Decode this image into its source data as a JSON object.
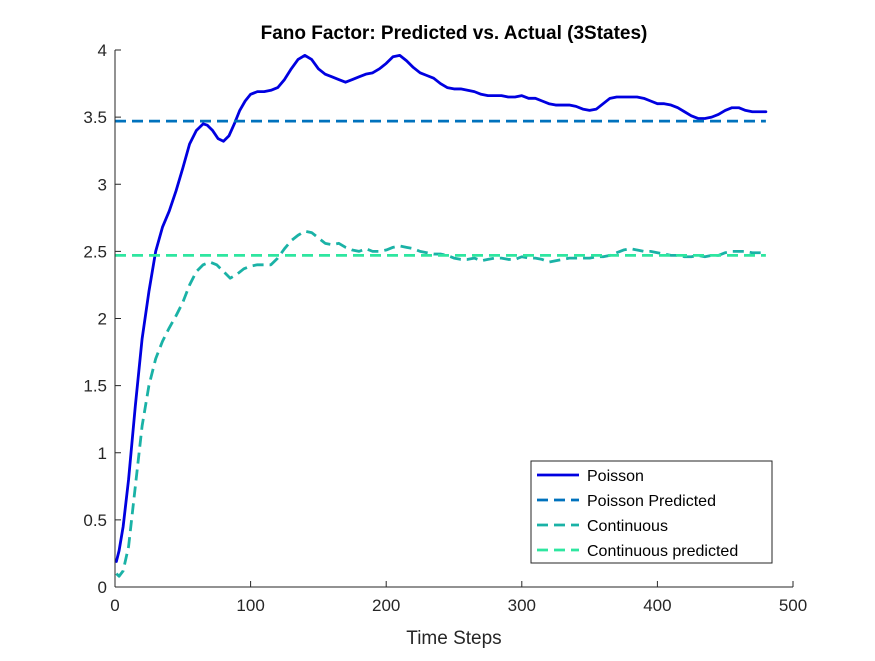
{
  "chart_data": {
    "type": "line",
    "title": "Fano Factor: Predicted vs. Actual (3States)",
    "xlabel": "Time Steps",
    "ylabel": "",
    "xlim": [
      0,
      500
    ],
    "ylim": [
      0,
      4
    ],
    "xticks": [
      0,
      100,
      200,
      300,
      400,
      500
    ],
    "xtick_labels": [
      "0",
      "100",
      "200",
      "300",
      "400",
      "500"
    ],
    "yticks": [
      0,
      0.5,
      1,
      1.5,
      2,
      2.5,
      3,
      3.5,
      4
    ],
    "ytick_labels": [
      "0",
      "0.5",
      "1",
      "1.5",
      "2",
      "2.5",
      "3",
      "3.5",
      "4"
    ],
    "grid": false,
    "legend_position": "bottom-right",
    "series": [
      {
        "name": "Poisson",
        "style": "solid",
        "color": "#0000E0",
        "x": [
          1,
          3,
          6,
          10,
          15,
          20,
          25,
          30,
          35,
          40,
          45,
          50,
          55,
          60,
          65,
          68,
          72,
          76,
          80,
          84,
          88,
          92,
          96,
          100,
          105,
          110,
          115,
          120,
          125,
          130,
          135,
          140,
          145,
          150,
          155,
          160,
          165,
          170,
          175,
          180,
          185,
          190,
          195,
          200,
          205,
          210,
          215,
          220,
          225,
          230,
          235,
          240,
          245,
          250,
          255,
          260,
          265,
          270,
          275,
          280,
          285,
          290,
          295,
          300,
          305,
          310,
          315,
          320,
          325,
          330,
          335,
          340,
          345,
          350,
          355,
          360,
          365,
          370,
          375,
          380,
          385,
          390,
          395,
          400,
          405,
          410,
          415,
          420,
          425,
          430,
          435,
          440,
          445,
          450,
          455,
          460,
          465,
          470,
          475,
          480
        ],
        "y": [
          0.19,
          0.27,
          0.45,
          0.8,
          1.35,
          1.85,
          2.2,
          2.5,
          2.68,
          2.8,
          2.95,
          3.12,
          3.3,
          3.4,
          3.45,
          3.44,
          3.4,
          3.34,
          3.32,
          3.36,
          3.45,
          3.55,
          3.62,
          3.67,
          3.69,
          3.69,
          3.7,
          3.72,
          3.78,
          3.86,
          3.93,
          3.96,
          3.93,
          3.86,
          3.82,
          3.8,
          3.78,
          3.76,
          3.78,
          3.8,
          3.82,
          3.83,
          3.86,
          3.9,
          3.95,
          3.96,
          3.92,
          3.87,
          3.83,
          3.81,
          3.79,
          3.75,
          3.72,
          3.71,
          3.71,
          3.7,
          3.69,
          3.67,
          3.66,
          3.66,
          3.66,
          3.65,
          3.65,
          3.66,
          3.64,
          3.64,
          3.62,
          3.6,
          3.59,
          3.59,
          3.59,
          3.58,
          3.56,
          3.55,
          3.56,
          3.6,
          3.64,
          3.65,
          3.65,
          3.65,
          3.65,
          3.64,
          3.62,
          3.6,
          3.6,
          3.59,
          3.57,
          3.54,
          3.51,
          3.49,
          3.49,
          3.5,
          3.52,
          3.55,
          3.57,
          3.57,
          3.55,
          3.54,
          3.54,
          3.54
        ]
      },
      {
        "name": "Poisson Predicted",
        "style": "dashed",
        "color": "#0072BD",
        "x": [
          0,
          480
        ],
        "y": [
          3.47,
          3.47
        ]
      },
      {
        "name": "Continuous",
        "style": "dashed",
        "color": "#1AB2A6",
        "x": [
          1,
          3,
          6,
          10,
          15,
          20,
          25,
          30,
          35,
          40,
          45,
          50,
          55,
          60,
          65,
          70,
          75,
          80,
          85,
          90,
          95,
          100,
          105,
          110,
          115,
          120,
          125,
          130,
          135,
          140,
          145,
          150,
          155,
          160,
          165,
          170,
          175,
          180,
          185,
          190,
          195,
          200,
          205,
          210,
          215,
          220,
          225,
          230,
          235,
          240,
          245,
          250,
          255,
          260,
          265,
          270,
          275,
          280,
          285,
          290,
          295,
          300,
          305,
          310,
          315,
          320,
          325,
          330,
          335,
          340,
          345,
          350,
          355,
          360,
          365,
          370,
          375,
          380,
          385,
          390,
          395,
          400,
          405,
          410,
          415,
          420,
          425,
          430,
          435,
          440,
          445,
          450,
          455,
          460,
          465,
          470,
          475,
          480
        ],
        "y": [
          0.1,
          0.08,
          0.12,
          0.3,
          0.75,
          1.2,
          1.5,
          1.7,
          1.83,
          1.93,
          2.02,
          2.12,
          2.25,
          2.35,
          2.4,
          2.42,
          2.4,
          2.35,
          2.3,
          2.33,
          2.37,
          2.39,
          2.4,
          2.4,
          2.4,
          2.45,
          2.52,
          2.58,
          2.62,
          2.65,
          2.64,
          2.6,
          2.56,
          2.55,
          2.56,
          2.53,
          2.51,
          2.5,
          2.52,
          2.5,
          2.5,
          2.51,
          2.53,
          2.54,
          2.53,
          2.52,
          2.5,
          2.49,
          2.48,
          2.48,
          2.47,
          2.45,
          2.44,
          2.44,
          2.45,
          2.43,
          2.44,
          2.45,
          2.45,
          2.44,
          2.44,
          2.46,
          2.45,
          2.45,
          2.44,
          2.42,
          2.43,
          2.44,
          2.45,
          2.45,
          2.45,
          2.45,
          2.46,
          2.46,
          2.47,
          2.49,
          2.51,
          2.52,
          2.51,
          2.5,
          2.5,
          2.49,
          2.48,
          2.47,
          2.47,
          2.46,
          2.46,
          2.47,
          2.46,
          2.47,
          2.47,
          2.49,
          2.5,
          2.5,
          2.5,
          2.49,
          2.49,
          2.49
        ]
      },
      {
        "name": "Continuous predicted",
        "style": "dashed",
        "color": "#2EE6A0",
        "x": [
          0,
          480
        ],
        "y": [
          2.47,
          2.47
        ]
      }
    ]
  }
}
